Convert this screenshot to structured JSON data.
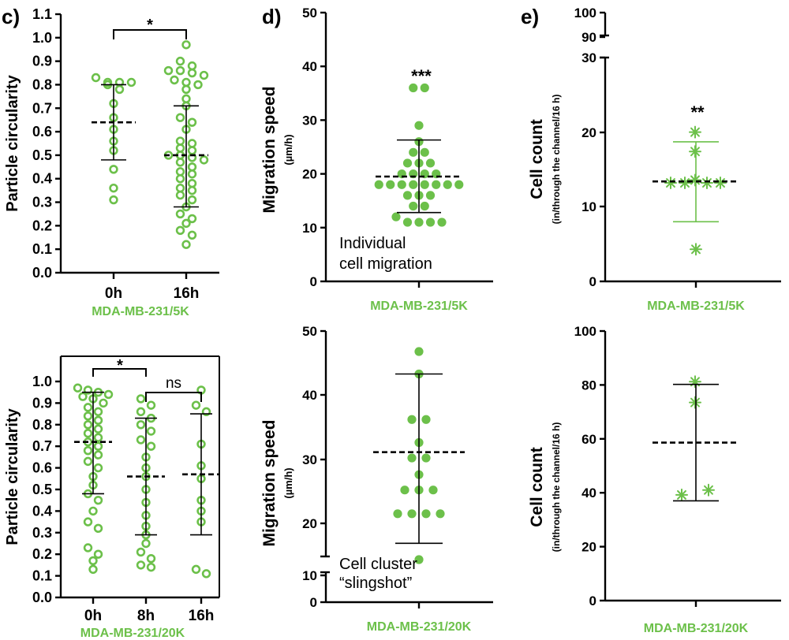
{
  "panel_labels": [
    "c)",
    "d)",
    "e)"
  ],
  "colors": {
    "green": "#6cc04a",
    "axis": "#000000"
  },
  "chart_data": [
    {
      "id": "c_top",
      "type": "scatter",
      "panel": "c)",
      "ylabel": "Particle circularity",
      "xlabel": "MDA-MB-231/5K",
      "ylim": [
        0,
        1.1
      ],
      "yticks": [
        "0.0",
        "0.1",
        "0.2",
        "0.3",
        "0.4",
        "0.5",
        "0.6",
        "0.7",
        "0.8",
        "0.9",
        "1.0",
        "1.1"
      ],
      "categories": [
        "0h",
        "16h"
      ],
      "marker": "open-circle",
      "series": [
        {
          "category": "0h",
          "mean": 0.64,
          "sd_low": 0.48,
          "sd_high": 0.8,
          "values": [
            0.83,
            0.81,
            0.81,
            0.81,
            0.8,
            0.78,
            0.72,
            0.66,
            0.61,
            0.56,
            0.52,
            0.44,
            0.36,
            0.31
          ]
        },
        {
          "category": "16h",
          "mean": 0.5,
          "sd_low": 0.28,
          "sd_high": 0.71,
          "values": [
            0.97,
            0.9,
            0.88,
            0.86,
            0.86,
            0.85,
            0.84,
            0.82,
            0.81,
            0.8,
            0.78,
            0.74,
            0.71,
            0.66,
            0.64,
            0.61,
            0.56,
            0.55,
            0.53,
            0.52,
            0.5,
            0.5,
            0.49,
            0.48,
            0.47,
            0.45,
            0.43,
            0.42,
            0.4,
            0.38,
            0.36,
            0.35,
            0.33,
            0.31,
            0.28,
            0.25,
            0.23,
            0.21,
            0.18,
            0.16,
            0.12
          ]
        }
      ],
      "annotations": [
        {
          "between": [
            "0h",
            "16h"
          ],
          "label": "*"
        }
      ]
    },
    {
      "id": "c_bottom",
      "type": "scatter",
      "ylabel": "Particle circularity",
      "xlabel": "MDA-MB-231/20K",
      "ylim": [
        0,
        1.0
      ],
      "yticks": [
        "0.0",
        "0.1",
        "0.2",
        "0.3",
        "0.4",
        "0.5",
        "0.6",
        "0.7",
        "0.8",
        "0.9",
        "1.0"
      ],
      "categories": [
        "0h",
        "8h",
        "16h"
      ],
      "marker": "open-circle",
      "series": [
        {
          "category": "0h",
          "mean": 0.72,
          "sd_low": 0.48,
          "sd_high": 0.95,
          "values": [
            0.97,
            0.96,
            0.95,
            0.94,
            0.93,
            0.92,
            0.9,
            0.88,
            0.86,
            0.84,
            0.82,
            0.8,
            0.78,
            0.76,
            0.74,
            0.72,
            0.7,
            0.68,
            0.66,
            0.63,
            0.6,
            0.56,
            0.52,
            0.48,
            0.45,
            0.4,
            0.35,
            0.32,
            0.23,
            0.2,
            0.17,
            0.13
          ]
        },
        {
          "category": "8h",
          "mean": 0.56,
          "sd_low": 0.29,
          "sd_high": 0.83,
          "values": [
            0.92,
            0.89,
            0.86,
            0.83,
            0.8,
            0.77,
            0.73,
            0.7,
            0.65,
            0.6,
            0.56,
            0.5,
            0.44,
            0.38,
            0.33,
            0.29,
            0.25,
            0.21,
            0.18,
            0.15,
            0.14
          ]
        },
        {
          "category": "16h",
          "mean": 0.57,
          "sd_low": 0.29,
          "sd_high": 0.85,
          "values": [
            0.96,
            0.89,
            0.86,
            0.71,
            0.61,
            0.55,
            0.45,
            0.4,
            0.35,
            0.13,
            0.11
          ]
        }
      ],
      "annotations": [
        {
          "between": [
            "0h",
            "8h"
          ],
          "label": "*"
        },
        {
          "between": [
            "8h",
            "16h"
          ],
          "label": "ns"
        }
      ]
    },
    {
      "id": "d_top",
      "type": "scatter",
      "panel": "d)",
      "ylabel": "Migration speed",
      "yunit": "(µm/h)",
      "xlabel": "MDA-MB-231/5K",
      "ylim": [
        0,
        50
      ],
      "yticks": [
        "0",
        "10",
        "20",
        "30",
        "40",
        "50"
      ],
      "marker": "filled-circle",
      "series": [
        {
          "mean": 19.5,
          "sd_low": 12.8,
          "sd_high": 26.3,
          "values": [
            36,
            36,
            29,
            26,
            24,
            24,
            22,
            22,
            22,
            20,
            20,
            20,
            20,
            18,
            18,
            18,
            18,
            18,
            18,
            18,
            18,
            16,
            16,
            16,
            14,
            14,
            12,
            11,
            11,
            11,
            11
          ]
        }
      ],
      "annotations": [
        {
          "label": "***"
        },
        {
          "label": "Individual\ncell migration"
        }
      ]
    },
    {
      "id": "d_bottom",
      "type": "scatter",
      "ylabel": "Migration speed",
      "yunit": "(µm/h)",
      "xlabel": "MDA-MB-231/20K",
      "ylim": [
        0,
        50
      ],
      "broken_axis": [
        10,
        18
      ],
      "yticks": [
        "0",
        "10",
        "20",
        "30",
        "40",
        "50"
      ],
      "marker": "filled-circle",
      "series": [
        {
          "mean": 31.1,
          "sd_low": 18.9,
          "sd_high": 43.3,
          "values": [
            46.8,
            43.3,
            36.2,
            36.2,
            32.6,
            30.2,
            30.2,
            27.6,
            25.2,
            25.2,
            25.2,
            21.5,
            21.5,
            21.5,
            21.5,
            18.0
          ]
        }
      ],
      "annotations": [
        {
          "label": "Cell cluster\n“slingshot”"
        }
      ]
    },
    {
      "id": "e_top",
      "type": "scatter",
      "panel": "e)",
      "ylabel": "Cell count",
      "yunit": "(in/through the channel/16 h)",
      "xlabel": "MDA-MB-231/5K",
      "ylim": [
        0,
        100
      ],
      "broken_axis": [
        30,
        90
      ],
      "yticks": [
        "0",
        "10",
        "20",
        "30",
        "90",
        "100"
      ],
      "marker": "asterisk",
      "series": [
        {
          "mean": 13.4,
          "sd_low": 8.0,
          "sd_high": 18.7,
          "values": [
            20.0,
            17.4,
            14.0,
            13.2,
            13.2,
            13.2,
            13.2,
            4.3
          ]
        }
      ],
      "annotations": [
        {
          "label": "**"
        }
      ]
    },
    {
      "id": "e_bottom",
      "type": "scatter",
      "ylabel": "Cell count",
      "yunit": "(in/through the channel/16 h)",
      "xlabel": "MDA-MB-231/20K",
      "ylim": [
        0,
        100
      ],
      "yticks": [
        "0",
        "20",
        "40",
        "60",
        "80",
        "100"
      ],
      "marker": "asterisk",
      "series": [
        {
          "mean": 58.6,
          "sd_low": 37.0,
          "sd_high": 80.2,
          "values": [
            81.2,
            73.5,
            41.0,
            39.2
          ]
        }
      ]
    }
  ]
}
